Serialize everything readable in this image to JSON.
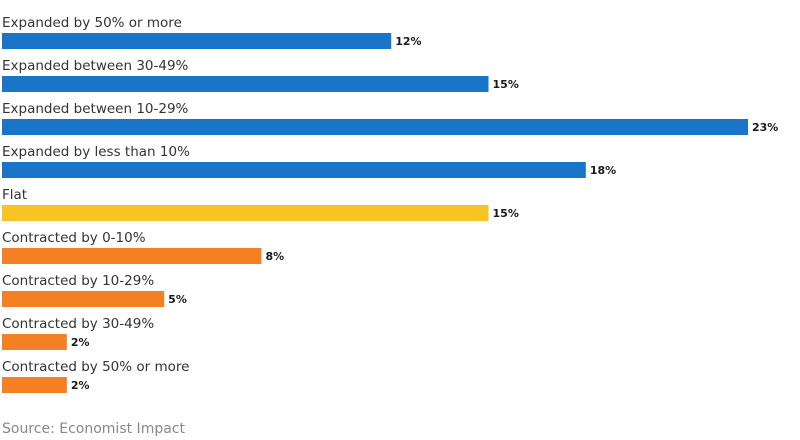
{
  "chart_data": {
    "type": "bar",
    "orientation": "horizontal",
    "categories": [
      "Expanded by 50% or more",
      "Expanded between 30-49%",
      "Expanded between 10-29%",
      "Expanded by less than 10%",
      "Flat",
      "Contracted by 0-10%",
      "Contracted by 10-29%",
      "Contracted by 30-49%",
      "Contracted by 50% or more"
    ],
    "values": [
      12,
      15,
      23,
      18,
      15,
      8,
      5,
      2,
      2
    ],
    "value_labels": [
      "12%",
      "15%",
      "23%",
      "18%",
      "15%",
      "8%",
      "5%",
      "2%",
      "2%"
    ],
    "colors": [
      "#1a75c8",
      "#1a75c8",
      "#1a75c8",
      "#1a75c8",
      "#f7c325",
      "#f58024",
      "#f58024",
      "#f58024",
      "#f58024"
    ],
    "title": "",
    "xlabel": "",
    "ylabel": "",
    "xlim": [
      0,
      23
    ],
    "grid": false,
    "legend": "none"
  },
  "source": "Source: Economist Impact"
}
